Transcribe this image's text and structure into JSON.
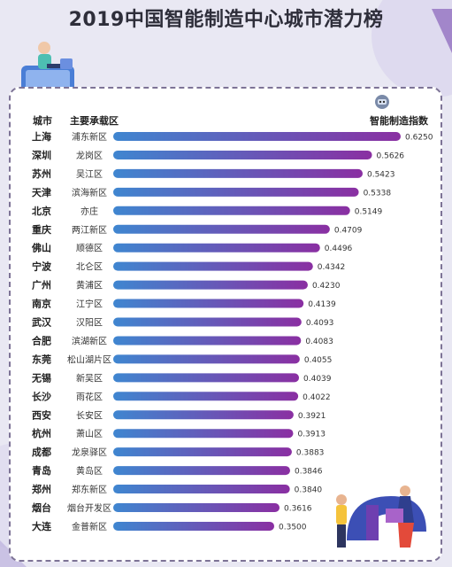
{
  "title": "2019中国智能制造中心城市潜力榜",
  "headers": {
    "city": "城市",
    "zone": "主要承载区",
    "index": "智能制造指数"
  },
  "colors": {
    "bar_start": "#3f86d0",
    "bar_end": "#8a2fa2",
    "background": "#e9e8f3"
  },
  "chart_data": {
    "type": "bar",
    "orientation": "horizontal",
    "categories": [
      "上海",
      "深圳",
      "苏州",
      "天津",
      "北京",
      "重庆",
      "佛山",
      "宁波",
      "广州",
      "南京",
      "武汉",
      "合肥",
      "东莞",
      "无锡",
      "长沙",
      "西安",
      "杭州",
      "成都",
      "青岛",
      "郑州",
      "烟台",
      "大连"
    ],
    "zones": [
      "浦东新区",
      "龙岗区",
      "吴江区",
      "滨海新区",
      "亦庄",
      "两江新区",
      "顺德区",
      "北仑区",
      "黄浦区",
      "江宁区",
      "汉阳区",
      "滨湖新区",
      "松山湖片区",
      "新吴区",
      "雨花区",
      "长安区",
      "萧山区",
      "龙泉驿区",
      "黄岛区",
      "郑东新区",
      "烟台开发区",
      "金普新区"
    ],
    "value_labels": [
      "0.6250",
      "0.5626",
      "0.5423",
      "0.5338",
      "0.5149",
      "0.4709",
      "0.4496",
      "0.4342",
      "0.4230",
      "0.4139",
      "0.4093",
      "0.4083",
      "0.4055",
      "0.4039",
      "0.4022",
      "0.3921",
      "0.3913",
      "0.3883",
      "0.3846",
      "0.3840",
      "0.3616",
      "0.3500"
    ],
    "values": [
      0.625,
      0.5626,
      0.5423,
      0.5338,
      0.5149,
      0.4709,
      0.4496,
      0.4342,
      0.423,
      0.4139,
      0.4093,
      0.4083,
      0.4055,
      0.4039,
      0.4022,
      0.3921,
      0.3913,
      0.3883,
      0.3846,
      0.384,
      0.3616,
      0.35
    ],
    "xlim": [
      0,
      0.625
    ],
    "grid": false,
    "legend": "none"
  }
}
